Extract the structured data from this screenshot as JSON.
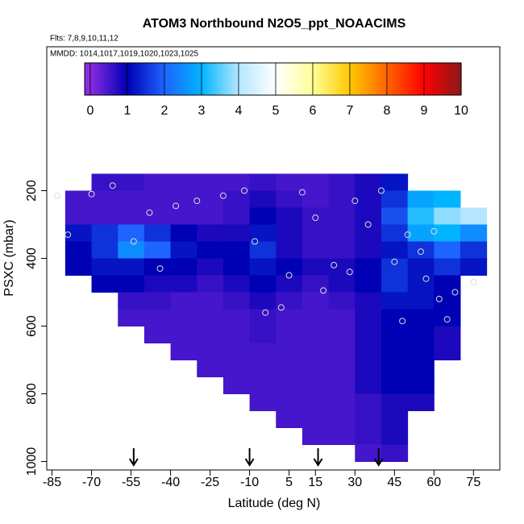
{
  "chart_data": {
    "type": "heatmap",
    "title": "ATOM3 Northbound N2O5_ppt_NOAACIMS",
    "subtitles": [
      "Flts: 7,8,9,10,11,12",
      "MMDD: 1014,1017,1019,1020,1023,1025"
    ],
    "xlabel": "Latitude (deg N)",
    "ylabel": "PSXC (mbar)",
    "xlim": [
      -87,
      85
    ],
    "xticks": [
      -85,
      -70,
      -55,
      -40,
      -25,
      -10,
      5,
      15,
      30,
      45,
      60,
      75
    ],
    "ylim": [
      1025,
      -225
    ],
    "yticks": [
      200,
      400,
      600,
      800,
      1000
    ],
    "x_edges": [
      -80,
      -70,
      -60,
      -50,
      -40,
      -30,
      -20,
      -10,
      0,
      10,
      20,
      30,
      40,
      50,
      60,
      70,
      80
    ],
    "y_edges": [
      150,
      200,
      250,
      300,
      350,
      400,
      450,
      500,
      550,
      600,
      650,
      700,
      750,
      800,
      850,
      900,
      950,
      1000
    ],
    "z": [
      [
        null,
        0.6,
        0.6,
        0.5,
        0.5,
        0.5,
        0.5,
        0.6,
        0.5,
        0.5,
        0.6,
        0.8,
        1.2,
        null,
        null,
        null
      ],
      [
        0.5,
        0.5,
        0.5,
        0.5,
        0.5,
        0.5,
        0.6,
        0.8,
        0.6,
        0.5,
        0.6,
        0.8,
        1.5,
        2.8,
        3.0,
        null
      ],
      [
        0.5,
        0.5,
        0.5,
        0.5,
        0.5,
        0.5,
        0.6,
        1.0,
        0.8,
        0.6,
        0.6,
        0.8,
        1.8,
        3.2,
        3.8,
        4.0
      ],
      [
        1.2,
        1.5,
        2.0,
        1.5,
        1.0,
        0.8,
        0.8,
        1.2,
        0.8,
        0.6,
        0.6,
        0.8,
        1.5,
        2.8,
        3.0,
        2.5
      ],
      [
        1.0,
        1.5,
        2.5,
        2.0,
        1.2,
        1.0,
        1.0,
        1.5,
        0.8,
        0.6,
        0.6,
        0.8,
        1.2,
        1.5,
        2.0,
        1.5
      ],
      [
        1.0,
        1.2,
        1.2,
        1.0,
        1.0,
        0.8,
        1.0,
        1.2,
        1.0,
        0.8,
        0.8,
        1.0,
        1.5,
        1.2,
        1.5,
        1.2
      ],
      [
        null,
        1.0,
        1.0,
        0.8,
        0.8,
        0.6,
        0.8,
        1.0,
        0.8,
        0.6,
        0.8,
        1.0,
        1.5,
        1.2,
        1.0,
        null
      ],
      [
        null,
        null,
        0.6,
        0.6,
        0.5,
        0.5,
        0.6,
        0.8,
        0.6,
        0.5,
        0.6,
        0.8,
        1.2,
        1.2,
        1.0,
        null
      ],
      [
        null,
        null,
        0.5,
        0.5,
        0.5,
        0.5,
        0.5,
        0.6,
        0.5,
        0.5,
        0.5,
        0.8,
        1.0,
        1.0,
        1.0,
        null
      ],
      [
        null,
        null,
        null,
        0.5,
        0.5,
        0.5,
        0.5,
        0.6,
        0.5,
        0.5,
        0.5,
        0.8,
        1.0,
        1.0,
        0.8,
        null
      ],
      [
        null,
        null,
        null,
        null,
        0.5,
        0.5,
        0.5,
        0.5,
        0.5,
        0.5,
        0.5,
        0.8,
        1.0,
        1.0,
        0.8,
        null
      ],
      [
        null,
        null,
        null,
        null,
        null,
        0.5,
        0.5,
        0.5,
        0.5,
        0.5,
        0.5,
        0.8,
        1.0,
        1.0,
        null,
        null
      ],
      [
        null,
        null,
        null,
        null,
        null,
        null,
        0.5,
        0.5,
        0.5,
        0.5,
        0.5,
        0.8,
        1.0,
        1.0,
        null,
        null
      ],
      [
        null,
        null,
        null,
        null,
        null,
        null,
        null,
        0.5,
        0.5,
        0.5,
        0.5,
        0.6,
        0.8,
        0.8,
        null,
        null
      ],
      [
        null,
        null,
        null,
        null,
        null,
        null,
        null,
        null,
        0.5,
        0.5,
        0.5,
        0.6,
        0.8,
        null,
        null,
        null
      ],
      [
        null,
        null,
        null,
        null,
        null,
        null,
        null,
        null,
        null,
        0.5,
        0.5,
        0.6,
        0.8,
        null,
        null,
        null
      ],
      [
        null,
        null,
        null,
        null,
        null,
        null,
        null,
        null,
        null,
        null,
        null,
        0.5,
        0.6,
        null,
        null,
        null
      ]
    ],
    "clim": [
      -0.15,
      10
    ],
    "colorbar_ticks": [
      0,
      1,
      2,
      3,
      4,
      5,
      6,
      7,
      8,
      9,
      10
    ],
    "colors": [
      "#8a2be2",
      "#0000b4",
      "#1e64ff",
      "#00b4ff",
      "#b4e6ff",
      "#ffffff",
      "#ffff96",
      "#ffc800",
      "#ff6400",
      "#ff0000",
      "#8b1a1a"
    ],
    "points": {
      "x": [
        -83,
        -79,
        -70,
        -62,
        -54,
        -48,
        -38,
        -30,
        -20,
        -12,
        -8,
        -4,
        5,
        10,
        15,
        18,
        22,
        30,
        35,
        40,
        45,
        50,
        55,
        60,
        62,
        68,
        75,
        -44,
        2,
        28,
        48,
        57,
        65
      ],
      "y": [
        215,
        330,
        210,
        185,
        350,
        265,
        245,
        230,
        215,
        200,
        350,
        560,
        450,
        205,
        280,
        495,
        420,
        230,
        300,
        200,
        410,
        330,
        380,
        320,
        520,
        500,
        470,
        430,
        545,
        440,
        585,
        460,
        580
      ]
    },
    "arrows": [
      -54,
      -10,
      16,
      39
    ]
  }
}
